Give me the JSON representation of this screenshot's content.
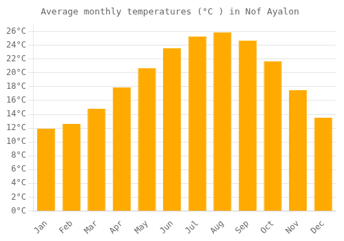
{
  "chart_data": {
    "type": "bar",
    "title": "Average monthly temperatures (°C ) in Nof Ayalon",
    "categories": [
      "Jan",
      "Feb",
      "Mar",
      "Apr",
      "May",
      "Jun",
      "Jul",
      "Aug",
      "Sep",
      "Oct",
      "Nov",
      "Dec"
    ],
    "values": [
      11.9,
      12.6,
      14.8,
      17.9,
      20.7,
      23.6,
      25.3,
      25.9,
      24.7,
      21.7,
      17.5,
      13.5
    ],
    "color": "#FFAA00",
    "ylim": [
      0,
      27
    ],
    "yticks": [
      {
        "value": 0,
        "label": "0°C"
      },
      {
        "value": 2,
        "label": "2°C"
      },
      {
        "value": 4,
        "label": "4°C"
      },
      {
        "value": 6,
        "label": "6°C"
      },
      {
        "value": 8,
        "label": "8°C"
      },
      {
        "value": 10,
        "label": "10°C"
      },
      {
        "value": 12,
        "label": "12°C"
      },
      {
        "value": 14,
        "label": "14°C"
      },
      {
        "value": 16,
        "label": "16°C"
      },
      {
        "value": 18,
        "label": "18°C"
      },
      {
        "value": 20,
        "label": "20°C"
      },
      {
        "value": 22,
        "label": "22°C"
      },
      {
        "value": 24,
        "label": "24°C"
      },
      {
        "value": 26,
        "label": "26°C"
      }
    ],
    "grid": true
  }
}
